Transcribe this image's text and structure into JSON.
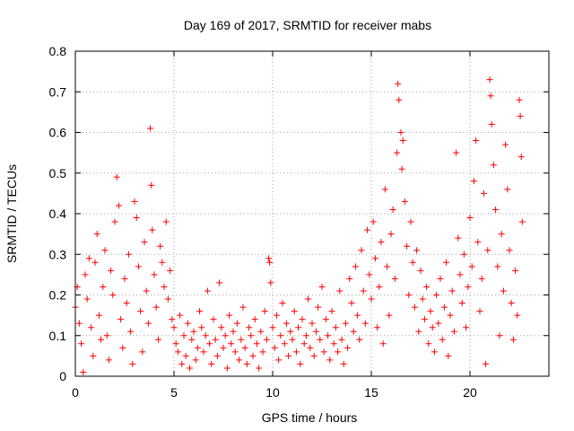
{
  "chart_data": {
    "type": "scatter",
    "title": "Day 169 of 2017, SRMTID for receiver mabs",
    "xlabel": "GPS time / hours",
    "ylabel": "SRMTID / TECUs",
    "xlim": [
      0,
      24
    ],
    "ylim": [
      0,
      0.8
    ],
    "x_ticks": [
      0,
      5,
      10,
      15,
      20
    ],
    "y_ticks": [
      0,
      0.1,
      0.2,
      0.3,
      0.4,
      0.5,
      0.6,
      0.7,
      0.8
    ],
    "x_tick_labels": [
      "0",
      "5",
      "10",
      "15",
      "20"
    ],
    "y_tick_labels": [
      "0",
      "0.1",
      "0.2",
      "0.3",
      "0.4",
      "0.5",
      "0.6",
      "0.7",
      "0.8"
    ],
    "grid": true,
    "marker": "+",
    "color": "#ff0000",
    "series": [
      {
        "name": "SRMTID",
        "points": [
          [
            0.0,
            0.17
          ],
          [
            0.1,
            0.22
          ],
          [
            0.2,
            0.13
          ],
          [
            0.3,
            0.08
          ],
          [
            0.4,
            0.01
          ],
          [
            0.5,
            0.25
          ],
          [
            0.6,
            0.19
          ],
          [
            0.7,
            0.29
          ],
          [
            0.8,
            0.12
          ],
          [
            0.9,
            0.05
          ],
          [
            1.0,
            0.28
          ],
          [
            1.1,
            0.35
          ],
          [
            1.2,
            0.15
          ],
          [
            1.3,
            0.09
          ],
          [
            1.4,
            0.22
          ],
          [
            1.5,
            0.31
          ],
          [
            1.6,
            0.1
          ],
          [
            1.7,
            0.04
          ],
          [
            1.8,
            0.26
          ],
          [
            1.9,
            0.2
          ],
          [
            2.0,
            0.38
          ],
          [
            2.1,
            0.49
          ],
          [
            2.2,
            0.42
          ],
          [
            2.3,
            0.14
          ],
          [
            2.4,
            0.07
          ],
          [
            2.5,
            0.24
          ],
          [
            2.6,
            0.18
          ],
          [
            2.7,
            0.3
          ],
          [
            2.8,
            0.11
          ],
          [
            2.9,
            0.03
          ],
          [
            3.0,
            0.43
          ],
          [
            3.1,
            0.39
          ],
          [
            3.2,
            0.27
          ],
          [
            3.3,
            0.16
          ],
          [
            3.4,
            0.06
          ],
          [
            3.5,
            0.33
          ],
          [
            3.6,
            0.21
          ],
          [
            3.7,
            0.13
          ],
          [
            3.8,
            0.61
          ],
          [
            3.85,
            0.47
          ],
          [
            3.9,
            0.36
          ],
          [
            4.0,
            0.25
          ],
          [
            4.1,
            0.17
          ],
          [
            4.2,
            0.09
          ],
          [
            4.3,
            0.32
          ],
          [
            4.4,
            0.28
          ],
          [
            4.5,
            0.22
          ],
          [
            4.6,
            0.38
          ],
          [
            4.7,
            0.19
          ],
          [
            4.8,
            0.26
          ],
          [
            4.9,
            0.14
          ],
          [
            5.0,
            0.12
          ],
          [
            5.1,
            0.08
          ],
          [
            5.2,
            0.06
          ],
          [
            5.3,
            0.15
          ],
          [
            5.4,
            0.03
          ],
          [
            5.5,
            0.1
          ],
          [
            5.6,
            0.05
          ],
          [
            5.7,
            0.13
          ],
          [
            5.8,
            0.02
          ],
          [
            5.9,
            0.09
          ],
          [
            6.0,
            0.11
          ],
          [
            6.1,
            0.04
          ],
          [
            6.2,
            0.07
          ],
          [
            6.3,
            0.16
          ],
          [
            6.4,
            0.12
          ],
          [
            6.5,
            0.06
          ],
          [
            6.6,
            0.1
          ],
          [
            6.7,
            0.21
          ],
          [
            6.8,
            0.08
          ],
          [
            6.9,
            0.03
          ],
          [
            7.0,
            0.14
          ],
          [
            7.1,
            0.09
          ],
          [
            7.2,
            0.05
          ],
          [
            7.3,
            0.23
          ],
          [
            7.4,
            0.12
          ],
          [
            7.5,
            0.07
          ],
          [
            7.6,
            0.1
          ],
          [
            7.7,
            0.02
          ],
          [
            7.8,
            0.15
          ],
          [
            7.9,
            0.08
          ],
          [
            8.0,
            0.11
          ],
          [
            8.1,
            0.06
          ],
          [
            8.2,
            0.13
          ],
          [
            8.3,
            0.04
          ],
          [
            8.4,
            0.09
          ],
          [
            8.5,
            0.17
          ],
          [
            8.6,
            0.07
          ],
          [
            8.7,
            0.03
          ],
          [
            8.8,
            0.12
          ],
          [
            8.9,
            0.1
          ],
          [
            9.0,
            0.05
          ],
          [
            9.1,
            0.14
          ],
          [
            9.2,
            0.08
          ],
          [
            9.3,
            0.02
          ],
          [
            9.4,
            0.11
          ],
          [
            9.5,
            0.06
          ],
          [
            9.6,
            0.16
          ],
          [
            9.7,
            0.09
          ],
          [
            9.8,
            0.29
          ],
          [
            9.85,
            0.28
          ],
          [
            9.9,
            0.23
          ],
          [
            10.0,
            0.12
          ],
          [
            10.1,
            0.07
          ],
          [
            10.2,
            0.15
          ],
          [
            10.3,
            0.04
          ],
          [
            10.4,
            0.1
          ],
          [
            10.5,
            0.18
          ],
          [
            10.6,
            0.08
          ],
          [
            10.7,
            0.13
          ],
          [
            10.8,
            0.05
          ],
          [
            10.9,
            0.11
          ],
          [
            11.0,
            0.09
          ],
          [
            11.1,
            0.16
          ],
          [
            11.2,
            0.06
          ],
          [
            11.3,
            0.12
          ],
          [
            11.4,
            0.03
          ],
          [
            11.5,
            0.14
          ],
          [
            11.6,
            0.08
          ],
          [
            11.7,
            0.1
          ],
          [
            11.8,
            0.19
          ],
          [
            11.9,
            0.07
          ],
          [
            12.0,
            0.13
          ],
          [
            12.1,
            0.05
          ],
          [
            12.2,
            0.11
          ],
          [
            12.3,
            0.17
          ],
          [
            12.4,
            0.09
          ],
          [
            12.5,
            0.22
          ],
          [
            12.6,
            0.06
          ],
          [
            12.7,
            0.14
          ],
          [
            12.8,
            0.1
          ],
          [
            12.9,
            0.04
          ],
          [
            13.0,
            0.16
          ],
          [
            13.1,
            0.08
          ],
          [
            13.2,
            0.12
          ],
          [
            13.3,
            0.06
          ],
          [
            13.4,
            0.21
          ],
          [
            13.5,
            0.09
          ],
          [
            13.6,
            0.03
          ],
          [
            13.7,
            0.13
          ],
          [
            13.8,
            0.07
          ],
          [
            13.9,
            0.24
          ],
          [
            14.0,
            0.18
          ],
          [
            14.1,
            0.11
          ],
          [
            14.2,
            0.27
          ],
          [
            14.3,
            0.15
          ],
          [
            14.4,
            0.09
          ],
          [
            14.5,
            0.31
          ],
          [
            14.6,
            0.21
          ],
          [
            14.7,
            0.13
          ],
          [
            14.8,
            0.36
          ],
          [
            14.9,
            0.25
          ],
          [
            15.0,
            0.19
          ],
          [
            15.1,
            0.38
          ],
          [
            15.2,
            0.29
          ],
          [
            15.3,
            0.12
          ],
          [
            15.4,
            0.22
          ],
          [
            15.5,
            0.33
          ],
          [
            15.6,
            0.08
          ],
          [
            15.7,
            0.46
          ],
          [
            15.8,
            0.27
          ],
          [
            15.9,
            0.15
          ],
          [
            16.0,
            0.35
          ],
          [
            16.1,
            0.41
          ],
          [
            16.2,
            0.24
          ],
          [
            16.3,
            0.55
          ],
          [
            16.35,
            0.72
          ],
          [
            16.4,
            0.68
          ],
          [
            16.5,
            0.6
          ],
          [
            16.55,
            0.51
          ],
          [
            16.6,
            0.58
          ],
          [
            16.7,
            0.43
          ],
          [
            16.8,
            0.32
          ],
          [
            16.9,
            0.2
          ],
          [
            17.0,
            0.38
          ],
          [
            17.1,
            0.28
          ],
          [
            17.2,
            0.17
          ],
          [
            17.3,
            0.31
          ],
          [
            17.4,
            0.11
          ],
          [
            17.5,
            0.26
          ],
          [
            17.6,
            0.19
          ],
          [
            17.7,
            0.14
          ],
          [
            17.8,
            0.22
          ],
          [
            17.9,
            0.08
          ],
          [
            18.0,
            0.16
          ],
          [
            18.1,
            0.12
          ],
          [
            18.2,
            0.06
          ],
          [
            18.3,
            0.2
          ],
          [
            18.4,
            0.13
          ],
          [
            18.5,
            0.24
          ],
          [
            18.6,
            0.09
          ],
          [
            18.7,
            0.17
          ],
          [
            18.8,
            0.28
          ],
          [
            18.9,
            0.05
          ],
          [
            19.0,
            0.15
          ],
          [
            19.1,
            0.21
          ],
          [
            19.2,
            0.11
          ],
          [
            19.3,
            0.55
          ],
          [
            19.4,
            0.34
          ],
          [
            19.5,
            0.25
          ],
          [
            19.6,
            0.18
          ],
          [
            19.7,
            0.3
          ],
          [
            19.8,
            0.12
          ],
          [
            19.9,
            0.22
          ],
          [
            20.0,
            0.39
          ],
          [
            20.1,
            0.27
          ],
          [
            20.2,
            0.48
          ],
          [
            20.3,
            0.58
          ],
          [
            20.4,
            0.33
          ],
          [
            20.5,
            0.16
          ],
          [
            20.6,
            0.24
          ],
          [
            20.7,
            0.45
          ],
          [
            20.8,
            0.03
          ],
          [
            20.9,
            0.31
          ],
          [
            21.0,
            0.73
          ],
          [
            21.05,
            0.69
          ],
          [
            21.1,
            0.62
          ],
          [
            21.2,
            0.52
          ],
          [
            21.3,
            0.41
          ],
          [
            21.4,
            0.27
          ],
          [
            21.5,
            0.1
          ],
          [
            21.6,
            0.35
          ],
          [
            21.7,
            0.21
          ],
          [
            21.8,
            0.57
          ],
          [
            21.9,
            0.46
          ],
          [
            22.0,
            0.31
          ],
          [
            22.1,
            0.18
          ],
          [
            22.2,
            0.09
          ],
          [
            22.3,
            0.26
          ],
          [
            22.4,
            0.15
          ],
          [
            22.5,
            0.68
          ],
          [
            22.55,
            0.64
          ],
          [
            22.6,
            0.54
          ],
          [
            22.65,
            0.38
          ]
        ]
      }
    ]
  }
}
